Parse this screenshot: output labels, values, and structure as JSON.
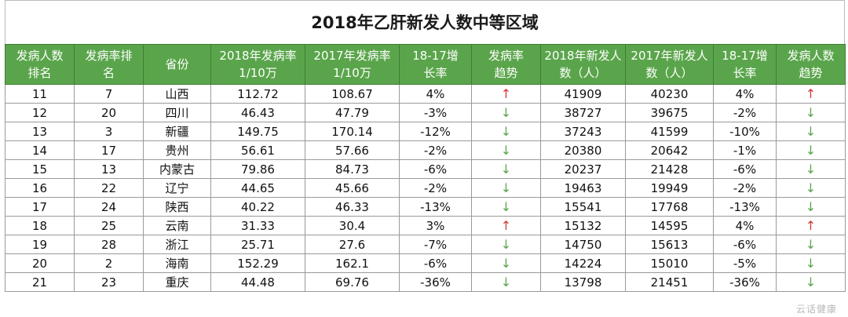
{
  "title": "2018年乙肝新发人数中等区域",
  "headers": [
    "发病人数排名",
    "发病率排名",
    "省份",
    "2018年发病率1/10万",
    "2017年发病率1/10万",
    "18-17增长率",
    "发病率趋势",
    "2018年新发人数（人）",
    "2017年新发人数（人）",
    "18-17增长率",
    "发病人数趋势"
  ],
  "header_lines": [
    [
      "发病人数",
      "排名"
    ],
    [
      "发病率排",
      "名"
    ],
    [
      "省份",
      ""
    ],
    [
      "2018年发病率",
      "1/10万"
    ],
    [
      "2017年发病率",
      "1/10万"
    ],
    [
      "18-17增",
      "长率"
    ],
    [
      "发病率",
      "趋势"
    ],
    [
      "2018年新发人",
      "数（人）"
    ],
    [
      "2017年新发人",
      "数（人）"
    ],
    [
      "18-17增",
      "长率"
    ],
    [
      "发病人数",
      "趋势"
    ]
  ],
  "rows": [
    {
      "rank": "11",
      "rate_rank": "7",
      "province": "山西",
      "rate_2018": "112.72",
      "rate_2017": "108.67",
      "rate_growth": "4%",
      "rate_trend": "up",
      "new_2018": "41909",
      "new_2017": "40230",
      "new_growth": "4%",
      "new_trend": "up"
    },
    {
      "rank": "12",
      "rate_rank": "20",
      "province": "四川",
      "rate_2018": "46.43",
      "rate_2017": "47.79",
      "rate_growth": "-3%",
      "rate_trend": "down",
      "new_2018": "38727",
      "new_2017": "39675",
      "new_growth": "-2%",
      "new_trend": "down"
    },
    {
      "rank": "13",
      "rate_rank": "3",
      "province": "新疆",
      "rate_2018": "149.75",
      "rate_2017": "170.14",
      "rate_growth": "-12%",
      "rate_trend": "down",
      "new_2018": "37243",
      "new_2017": "41599",
      "new_growth": "-10%",
      "new_trend": "down"
    },
    {
      "rank": "14",
      "rate_rank": "17",
      "province": "贵州",
      "rate_2018": "56.61",
      "rate_2017": "57.66",
      "rate_growth": "-2%",
      "rate_trend": "down",
      "new_2018": "20380",
      "new_2017": "20642",
      "new_growth": "-1%",
      "new_trend": "down"
    },
    {
      "rank": "15",
      "rate_rank": "13",
      "province": "内蒙古",
      "rate_2018": "79.86",
      "rate_2017": "84.73",
      "rate_growth": "-6%",
      "rate_trend": "down",
      "new_2018": "20237",
      "new_2017": "21428",
      "new_growth": "-6%",
      "new_trend": "down"
    },
    {
      "rank": "16",
      "rate_rank": "22",
      "province": "辽宁",
      "rate_2018": "44.65",
      "rate_2017": "45.66",
      "rate_growth": "-2%",
      "rate_trend": "down",
      "new_2018": "19463",
      "new_2017": "19949",
      "new_growth": "-2%",
      "new_trend": "down"
    },
    {
      "rank": "17",
      "rate_rank": "24",
      "province": "陕西",
      "rate_2018": "40.22",
      "rate_2017": "46.33",
      "rate_growth": "-13%",
      "rate_trend": "down",
      "new_2018": "15541",
      "new_2017": "17768",
      "new_growth": "-13%",
      "new_trend": "down"
    },
    {
      "rank": "18",
      "rate_rank": "25",
      "province": "云南",
      "rate_2018": "31.33",
      "rate_2017": "30.4",
      "rate_growth": "3%",
      "rate_trend": "up",
      "new_2018": "15132",
      "new_2017": "14595",
      "new_growth": "4%",
      "new_trend": "up"
    },
    {
      "rank": "19",
      "rate_rank": "28",
      "province": "浙江",
      "rate_2018": "25.71",
      "rate_2017": "27.6",
      "rate_growth": "-7%",
      "rate_trend": "down",
      "new_2018": "14750",
      "new_2017": "15613",
      "new_growth": "-6%",
      "new_trend": "down"
    },
    {
      "rank": "20",
      "rate_rank": "2",
      "province": "海南",
      "rate_2018": "152.29",
      "rate_2017": "162.1",
      "rate_growth": "-6%",
      "rate_trend": "down",
      "new_2018": "14224",
      "new_2017": "15010",
      "new_growth": "-5%",
      "new_trend": "down"
    },
    {
      "rank": "21",
      "rate_rank": "23",
      "province": "重庆",
      "rate_2018": "44.48",
      "rate_2017": "69.76",
      "rate_growth": "-36%",
      "rate_trend": "down",
      "new_2018": "13798",
      "new_2017": "21451",
      "new_growth": "-36%",
      "new_trend": "down"
    }
  ],
  "colors": {
    "header_bg": "#5aa54b",
    "up_arrow": "#d23a3a",
    "down_arrow": "#5aa54b"
  },
  "icons": {
    "up": "arrow-up-icon",
    "down": "arrow-down-icon"
  },
  "watermark": "云话健康"
}
